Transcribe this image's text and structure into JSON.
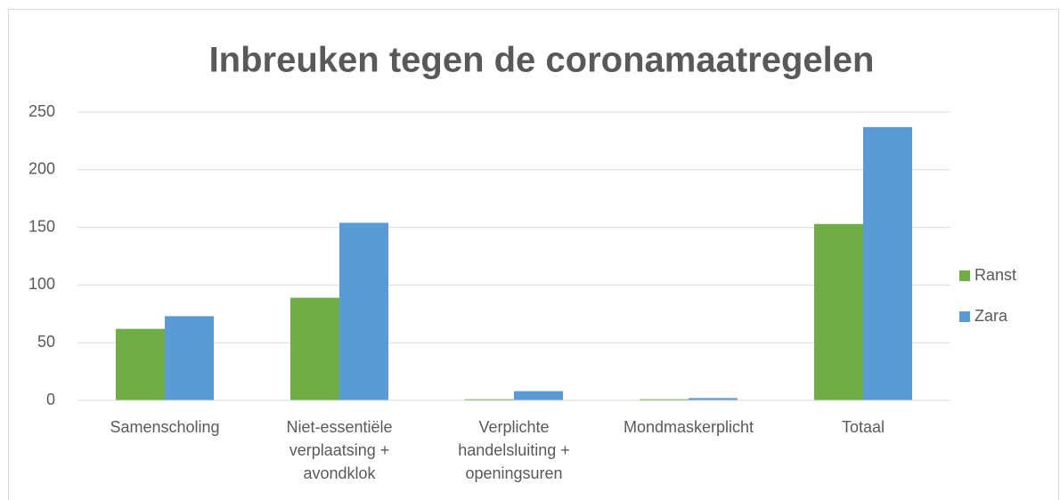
{
  "chart_data": {
    "type": "bar",
    "title": "Inbreuken tegen de coronamaatregelen",
    "categories": [
      "Samenscholing",
      "Niet-essentiële\nverplaatsing +\navondklok",
      "Verplichte\nhandelsluiting +\nopeningsuren",
      "Mondmaskerplicht",
      "Totaal"
    ],
    "series": [
      {
        "name": "Ranst",
        "color": "#70ad47",
        "values": [
          62,
          89,
          1,
          1,
          153
        ]
      },
      {
        "name": "Zara",
        "color": "#5b9bd5",
        "values": [
          73,
          154,
          8,
          2,
          237
        ]
      }
    ],
    "ylim": [
      0,
      250
    ],
    "yticks": [
      0,
      50,
      100,
      150,
      200,
      250
    ],
    "grid": true,
    "legend": "right"
  }
}
